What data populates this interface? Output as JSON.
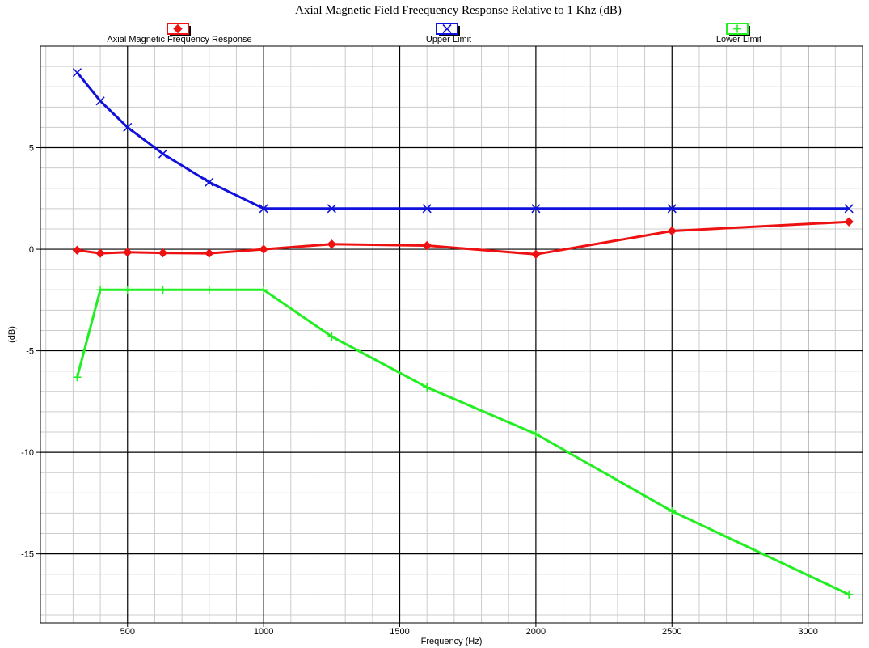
{
  "chart_data": {
    "type": "line",
    "title": "Axial Magnetic Field Freequency Response Relative to 1 Khz (dB)",
    "xlabel": "Frequency (Hz)",
    "ylabel": "(dB)",
    "xlim": [
      180,
      3200
    ],
    "ylim": [
      -18.4,
      10
    ],
    "xticks": [
      500,
      1000,
      1500,
      2000,
      2500,
      3000
    ],
    "yticks": [
      5,
      0,
      -5,
      -10,
      -15
    ],
    "grid": true,
    "legend_position": "top",
    "series": [
      {
        "name": "Axial Magnetic Frequency Response",
        "color": "#ee1111",
        "marker": "diamond",
        "x": [
          315,
          400,
          500,
          630,
          800,
          1000,
          1250,
          1600,
          2000,
          2500,
          3150
        ],
        "y": [
          -0.05,
          -0.2,
          -0.15,
          -0.18,
          -0.2,
          0.0,
          0.25,
          0.18,
          -0.25,
          0.9,
          1.35
        ]
      },
      {
        "name": "Upper Limit",
        "color": "#1111dd",
        "marker": "x",
        "x": [
          315,
          400,
          500,
          630,
          800,
          1000,
          1250,
          1600,
          2000,
          2500,
          3150
        ],
        "y": [
          8.7,
          7.3,
          6.0,
          4.7,
          3.3,
          2.0,
          2.0,
          2.0,
          2.0,
          2.0,
          2.0
        ]
      },
      {
        "name": "Lower Limit",
        "color": "#22ee22",
        "marker": "plus",
        "x": [
          315,
          400,
          500,
          630,
          800,
          1000,
          1250,
          1600,
          2000,
          2500,
          3150
        ],
        "y": [
          -6.3,
          -2.0,
          -2.0,
          -2.0,
          -2.0,
          -2.0,
          -4.3,
          -6.8,
          -9.1,
          -12.9,
          -17.0
        ]
      }
    ]
  }
}
